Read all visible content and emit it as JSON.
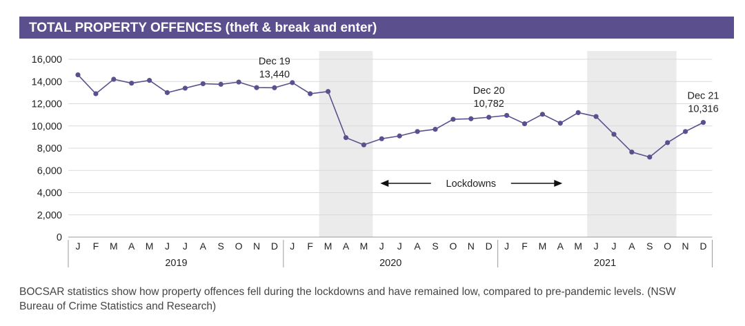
{
  "chart_data": {
    "type": "line",
    "title": "TOTAL PROPERTY OFFENCES (theft & break and enter)",
    "colors": {
      "title_bar": "#5b4f8e",
      "line": "#5b4f8e",
      "shading": "#ebebeb"
    },
    "ylim": [
      0,
      16000
    ],
    "yticks": [
      "0",
      "2,000",
      "4,000",
      "6,000",
      "8,000",
      "10,000",
      "12,000",
      "14,000",
      "16,000"
    ],
    "grid": true,
    "months": [
      "J",
      "F",
      "M",
      "A",
      "M",
      "J",
      "J",
      "A",
      "S",
      "O",
      "N",
      "D",
      "J",
      "F",
      "M",
      "A",
      "M",
      "J",
      "J",
      "A",
      "S",
      "O",
      "N",
      "D",
      "J",
      "F",
      "M",
      "A",
      "M",
      "J",
      "J",
      "A",
      "S",
      "O",
      "N",
      "D"
    ],
    "years": [
      "2019",
      "2020",
      "2021"
    ],
    "values": [
      14600,
      12900,
      14200,
      13850,
      14100,
      13000,
      13400,
      13800,
      13750,
      13950,
      13450,
      13440,
      13900,
      12900,
      13100,
      8950,
      8300,
      8850,
      9100,
      9500,
      9700,
      10600,
      10650,
      10782,
      10950,
      10200,
      11050,
      10250,
      11200,
      10850,
      9250,
      7650,
      7200,
      8500,
      9500,
      10316
    ],
    "shaded_periods": [
      {
        "start_index": 14,
        "end_index": 16
      },
      {
        "start_index": 29,
        "end_index": 33
      }
    ],
    "annotations": [
      {
        "index": 11,
        "line1": "Dec 19",
        "line2": "13,440"
      },
      {
        "index": 23,
        "line1": "Dec 20",
        "line2": "10,782"
      },
      {
        "index": 35,
        "line1": "Dec 21",
        "line2": "10,316"
      }
    ],
    "lockdowns_label": "Lockdowns"
  },
  "caption": "BOCSAR statistics show how property offences fell during the lockdowns and have remained low, compared to pre-pandemic levels. (NSW Bureau of Crime Statistics and Research)"
}
